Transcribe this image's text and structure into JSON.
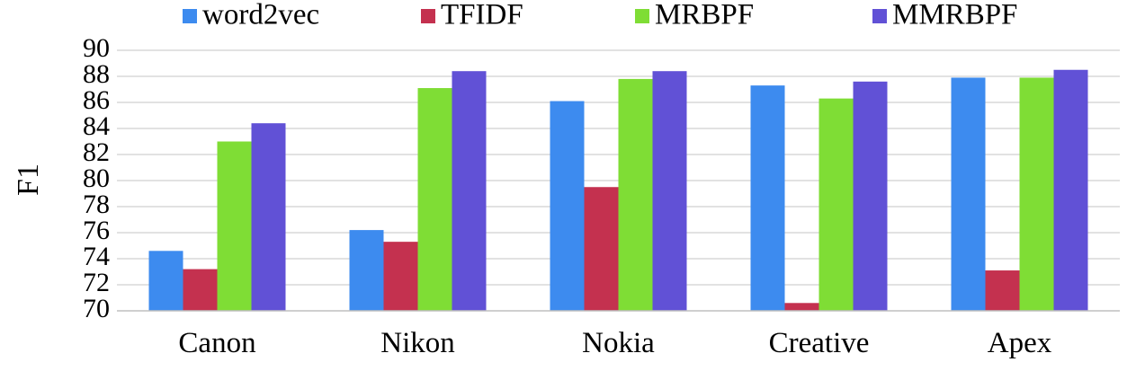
{
  "chart_data": {
    "type": "bar",
    "categories": [
      "Canon",
      "Nikon",
      "Nokia",
      "Creative",
      "Apex"
    ],
    "series": [
      {
        "name": "word2vec",
        "color": "#3d8bef",
        "values": [
          74.6,
          76.2,
          86.1,
          87.3,
          87.9
        ]
      },
      {
        "name": "TFIDF",
        "color": "#c4314f",
        "values": [
          73.2,
          75.3,
          79.5,
          70.6,
          73.1
        ]
      },
      {
        "name": "MRBPF",
        "color": "#7fdd35",
        "values": [
          83.0,
          87.1,
          87.8,
          86.3,
          87.9
        ]
      },
      {
        "name": "MMRBPF",
        "color": "#6151d6",
        "values": [
          84.4,
          88.4,
          88.4,
          87.6,
          88.5
        ]
      }
    ],
    "ylabel": "F1",
    "xlabel": "",
    "ylim": [
      70,
      90
    ],
    "yticks": [
      70,
      72,
      74,
      76,
      78,
      80,
      82,
      84,
      86,
      88,
      90
    ],
    "grid": true,
    "legend_position": "top"
  }
}
